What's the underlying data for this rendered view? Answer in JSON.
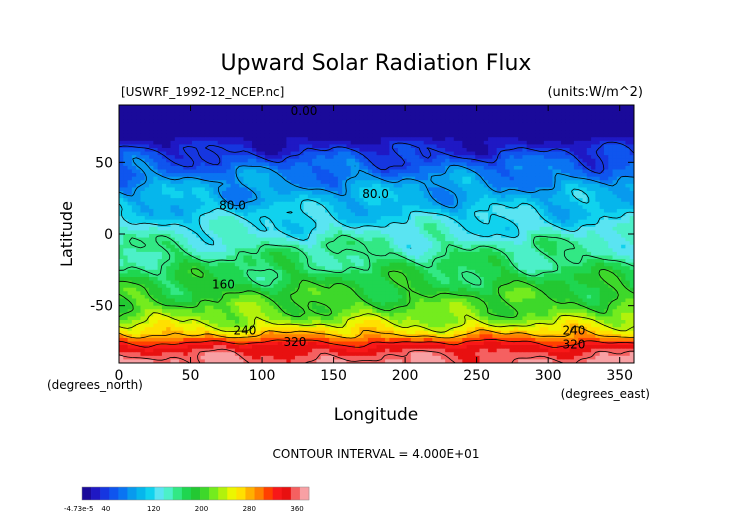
{
  "chart_data": {
    "type": "heatmap",
    "title": "Upward Solar Radiation Flux",
    "file_label": "[USWRF_1992-12_NCEP.nc]",
    "units_label": "(units:W/m^2)",
    "xlabel": "Longitude",
    "ylabel": "Latitude",
    "x_unit_label": "(degrees_east)",
    "y_unit_label": "(degrees_north)",
    "xlim": [
      0,
      360
    ],
    "ylim": [
      -90,
      90
    ],
    "x_ticks": [
      0,
      50,
      100,
      150,
      200,
      250,
      300,
      350
    ],
    "y_ticks": [
      50,
      0,
      -50
    ],
    "contour_interval_text": "CONTOUR INTERVAL = 4.000E+01",
    "contour_labels": [
      {
        "text": "0.00",
        "lon": 120,
        "lat": 83
      },
      {
        "text": "80.0",
        "lon": 70,
        "lat": 17
      },
      {
        "text": "80.0",
        "lon": 170,
        "lat": 25
      },
      {
        "text": "160",
        "lon": 65,
        "lat": -38
      },
      {
        "text": "240",
        "lon": 80,
        "lat": -70
      },
      {
        "text": "320",
        "lon": 115,
        "lat": -78
      },
      {
        "text": "240",
        "lon": 310,
        "lat": -70
      },
      {
        "text": "320",
        "lon": 310,
        "lat": -80
      }
    ],
    "zonal_profile": [
      {
        "lat": 90,
        "value": 0
      },
      {
        "lat": 72,
        "value": 0
      },
      {
        "lat": 66,
        "value": 15
      },
      {
        "lat": 58,
        "value": 35
      },
      {
        "lat": 48,
        "value": 60
      },
      {
        "lat": 35,
        "value": 85
      },
      {
        "lat": 22,
        "value": 100
      },
      {
        "lat": 12,
        "value": 115
      },
      {
        "lat": 2,
        "value": 130
      },
      {
        "lat": -8,
        "value": 150
      },
      {
        "lat": -20,
        "value": 165
      },
      {
        "lat": -32,
        "value": 180
      },
      {
        "lat": -45,
        "value": 200
      },
      {
        "lat": -55,
        "value": 215
      },
      {
        "lat": -62,
        "value": 235
      },
      {
        "lat": -68,
        "value": 265
      },
      {
        "lat": -72,
        "value": 290
      },
      {
        "lat": -76,
        "value": 325
      },
      {
        "lat": -82,
        "value": 350
      },
      {
        "lat": -90,
        "value": 365
      }
    ],
    "colorbar": {
      "min_label": "-4.73e-5",
      "labels": [
        "40",
        "120",
        "200",
        "280",
        "360"
      ],
      "label_values": [
        40,
        120,
        200,
        280,
        360
      ],
      "range": [
        0,
        380
      ],
      "colors": [
        "#1a0a9a",
        "#1f18c4",
        "#1636e0",
        "#0f55ee",
        "#0a74f2",
        "#089aee",
        "#06b6ec",
        "#10d2ee",
        "#5ae4f2",
        "#4cf0c8",
        "#32e884",
        "#1fd650",
        "#23c832",
        "#3ed82a",
        "#74ec1e",
        "#b2f20c",
        "#ecf600",
        "#ffe000",
        "#ffb000",
        "#ff8000",
        "#ff4000",
        "#f81818",
        "#e81010",
        "#f56060",
        "#f8a0a4"
      ]
    }
  }
}
